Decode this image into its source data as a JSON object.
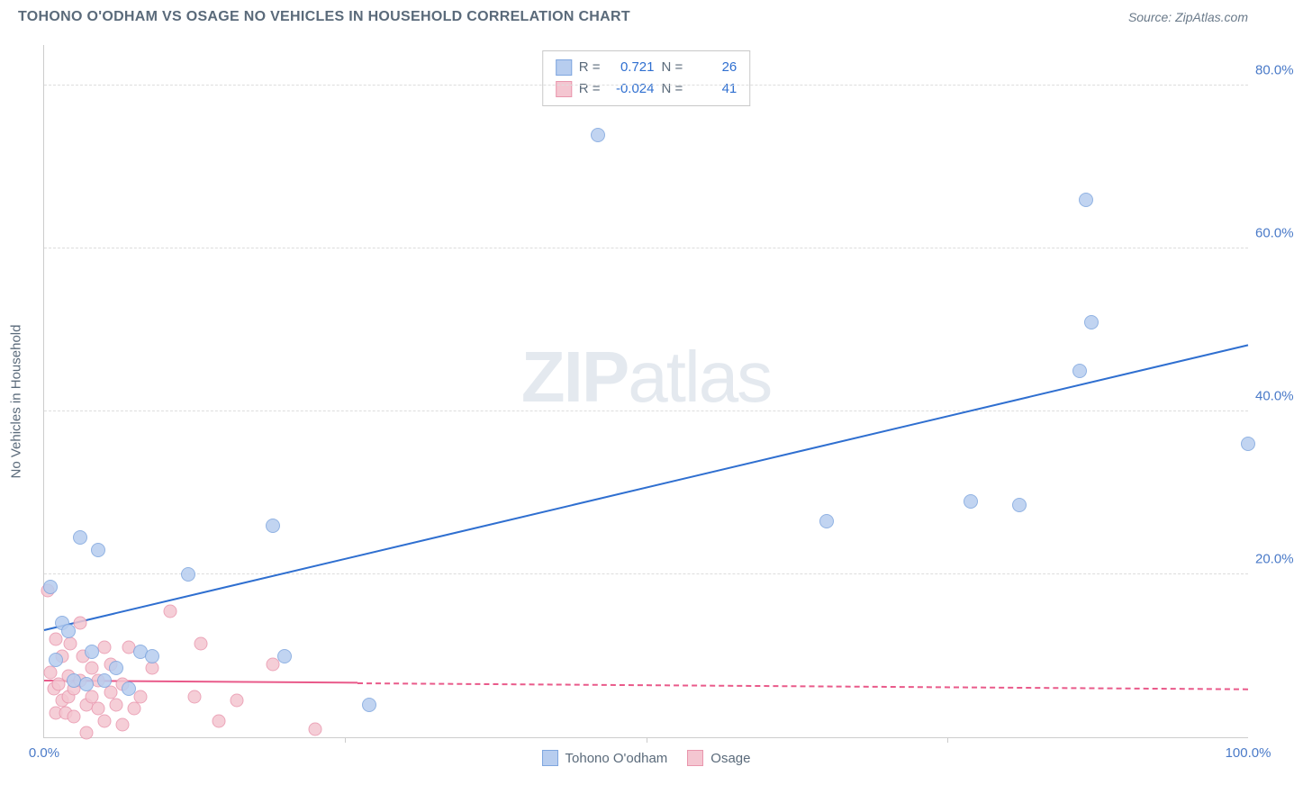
{
  "header": {
    "title": "TOHONO O'ODHAM VS OSAGE NO VEHICLES IN HOUSEHOLD CORRELATION CHART",
    "source_prefix": "Source: ",
    "source_name": "ZipAtlas.com"
  },
  "ylabel": "No Vehicles in Household",
  "watermark": {
    "left": "ZIP",
    "right": "atlas"
  },
  "chart": {
    "type": "scatter",
    "background_color": "#ffffff",
    "grid_color": "#dddddd",
    "axis_color": "#cccccc",
    "xlim": [
      0,
      100
    ],
    "ylim": [
      0,
      85
    ],
    "ytick_values": [
      20,
      40,
      60,
      80
    ],
    "ytick_labels": [
      "20.0%",
      "40.0%",
      "60.0%",
      "80.0%"
    ],
    "xtick_values": [
      0,
      100
    ],
    "xtick_labels": [
      "0.0%",
      "100.0%"
    ],
    "xtick_marks": [
      25,
      50,
      75
    ],
    "tick_color": "#4a7ac8",
    "label_fontsize": 15
  },
  "series": [
    {
      "name": "Tohono O'odham",
      "color_fill": "#b7cdef",
      "color_stroke": "#7ea6df",
      "marker_size": 16,
      "points": [
        [
          0.5,
          18.5
        ],
        [
          1,
          9.5
        ],
        [
          1.5,
          14
        ],
        [
          2,
          13
        ],
        [
          2.5,
          7
        ],
        [
          3,
          24.5
        ],
        [
          3.5,
          6.5
        ],
        [
          4,
          10.5
        ],
        [
          4.5,
          23
        ],
        [
          5,
          7
        ],
        [
          6,
          8.5
        ],
        [
          7,
          6
        ],
        [
          8,
          10.5
        ],
        [
          9,
          10
        ],
        [
          12,
          20
        ],
        [
          19,
          26
        ],
        [
          20,
          10
        ],
        [
          27,
          4
        ],
        [
          46,
          74
        ],
        [
          65,
          26.5
        ],
        [
          77,
          29
        ],
        [
          81,
          28.5
        ],
        [
          86,
          45
        ],
        [
          86.5,
          66
        ],
        [
          87,
          51
        ],
        [
          100,
          36
        ]
      ],
      "trend": {
        "color": "#2f6fd0",
        "width": 2.2,
        "x1": 0,
        "y1": 13,
        "x2": 100,
        "y2": 48,
        "solid_until_x": 100
      },
      "stats": {
        "r_label": "R =",
        "r_value": "0.721",
        "n_label": "N =",
        "n_value": "26"
      }
    },
    {
      "name": "Osage",
      "color_fill": "#f4c6d1",
      "color_stroke": "#e996ad",
      "marker_size": 15,
      "points": [
        [
          0.3,
          18
        ],
        [
          0.5,
          8
        ],
        [
          0.8,
          6
        ],
        [
          1,
          3
        ],
        [
          1,
          12
        ],
        [
          1.2,
          6.5
        ],
        [
          1.5,
          4.5
        ],
        [
          1.5,
          10
        ],
        [
          1.8,
          3
        ],
        [
          2,
          7.5
        ],
        [
          2,
          5
        ],
        [
          2.2,
          11.5
        ],
        [
          2.5,
          2.5
        ],
        [
          2.5,
          6
        ],
        [
          3,
          7
        ],
        [
          3,
          14
        ],
        [
          3.2,
          10
        ],
        [
          3.5,
          4
        ],
        [
          3.5,
          0.5
        ],
        [
          4,
          5
        ],
        [
          4,
          8.5
        ],
        [
          4.5,
          3.5
        ],
        [
          4.5,
          7
        ],
        [
          5,
          11
        ],
        [
          5,
          2
        ],
        [
          5.5,
          5.5
        ],
        [
          5.5,
          9
        ],
        [
          6,
          4
        ],
        [
          6.5,
          6.5
        ],
        [
          6.5,
          1.5
        ],
        [
          7,
          11
        ],
        [
          7.5,
          3.5
        ],
        [
          8,
          5
        ],
        [
          9,
          8.5
        ],
        [
          10.5,
          15.5
        ],
        [
          12.5,
          5
        ],
        [
          13,
          11.5
        ],
        [
          14.5,
          2
        ],
        [
          16,
          4.5
        ],
        [
          19,
          9
        ],
        [
          22.5,
          1
        ]
      ],
      "trend": {
        "color": "#e95a8a",
        "width": 2,
        "x1": 0,
        "y1": 6.8,
        "x2": 100,
        "y2": 5.8,
        "solid_until_x": 26
      },
      "stats": {
        "r_label": "R =",
        "r_value": "-0.024",
        "n_label": "N =",
        "n_value": "41"
      }
    }
  ],
  "legend_label_color": "#5a6a7a"
}
